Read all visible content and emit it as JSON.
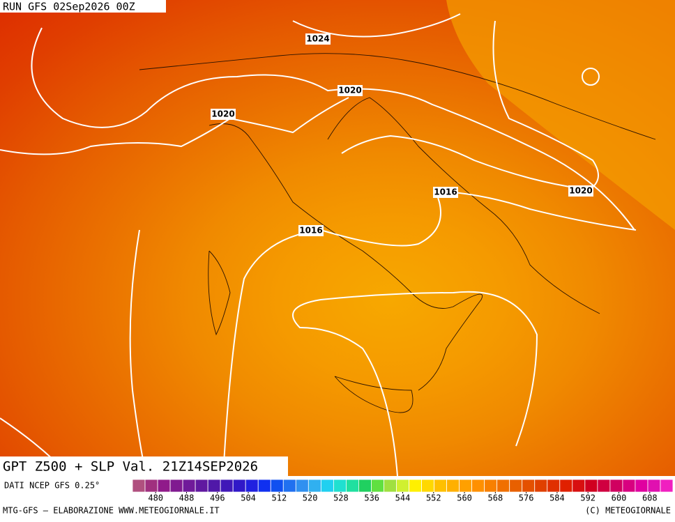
{
  "header": {
    "run": "RUN GFS 02Sep2026 00Z"
  },
  "map_title": "GPT Z500 + SLP Val. 21Z14SEP2026",
  "contour_labels": [
    "1024",
    "1020",
    "1020",
    "1016",
    "1020",
    "1016"
  ],
  "source": "DATI NCEP GFS 0.25°",
  "colorbar": {
    "range": [
      474,
      614
    ],
    "colors": [
      "#b0507f",
      "#a0307f",
      "#901a8a",
      "#801a90",
      "#701a9a",
      "#6018a0",
      "#5018a8",
      "#4018b8",
      "#3018c8",
      "#2020e0",
      "#1030f0",
      "#1050f0",
      "#2070f0",
      "#3090f0",
      "#30b0f0",
      "#20d0f0",
      "#20e0d0",
      "#20e0a0",
      "#20d060",
      "#60e040",
      "#a0e040",
      "#d0f030",
      "#fff000",
      "#ffd800",
      "#ffc000",
      "#ffb000",
      "#ffa000",
      "#ff9000",
      "#f88000",
      "#f07000",
      "#e86000",
      "#e45000",
      "#e04000",
      "#e03000",
      "#e02000",
      "#d81010",
      "#d00020",
      "#d00040",
      "#d00060",
      "#d80080",
      "#e000a0",
      "#e010b0",
      "#f020c0"
    ],
    "ticks": [
      480,
      488,
      496,
      504,
      512,
      520,
      528,
      536,
      544,
      552,
      560,
      568,
      576,
      584,
      592,
      600,
      608
    ]
  },
  "footer": {
    "left": "MTG-GFS — ELABORAZIONE WWW.METEOGIORNALE.IT",
    "right": "(C) METEOGIORNALE"
  }
}
